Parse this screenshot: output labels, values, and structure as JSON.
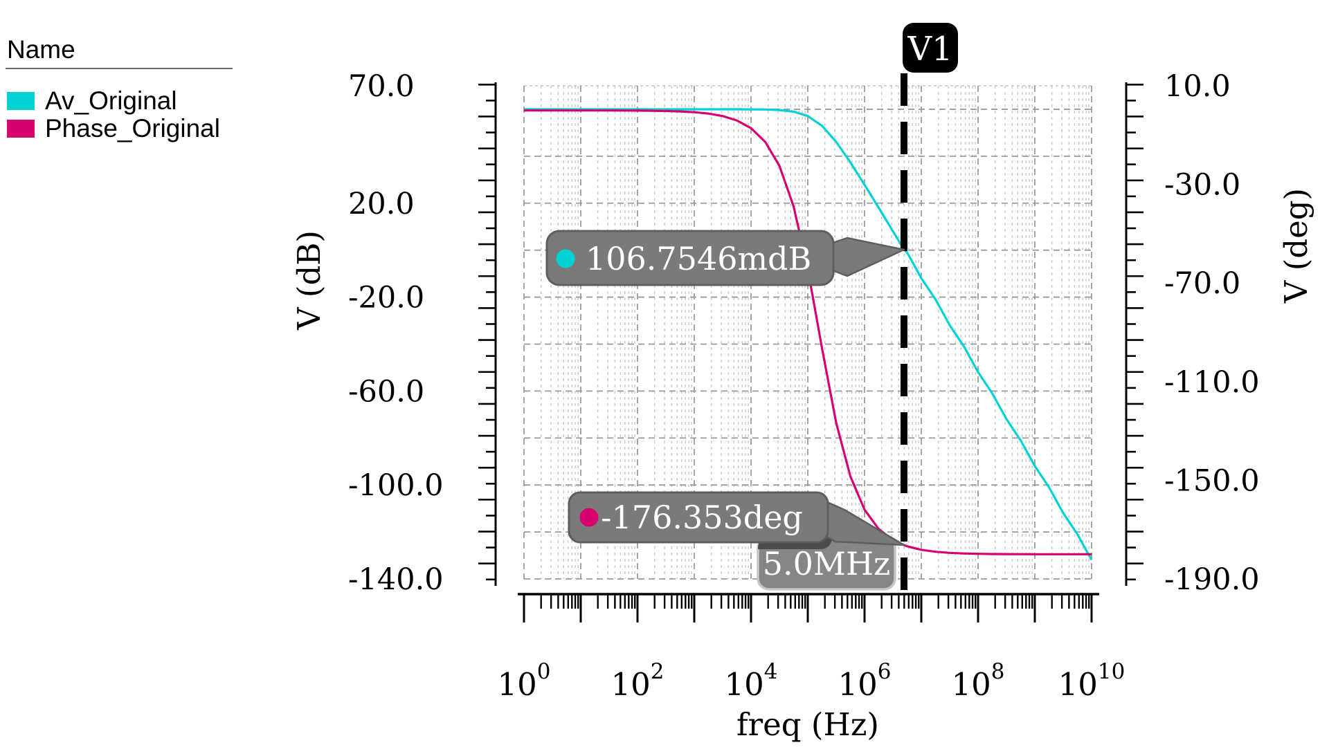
{
  "legend": {
    "title": "Name",
    "items": [
      {
        "label": "Av_Original",
        "color": "#00d2d4"
      },
      {
        "label": "Phase_Original",
        "color": "#d6006e"
      }
    ]
  },
  "axes": {
    "x": {
      "title": "freq (Hz)",
      "scale": "log",
      "min_exp": 0,
      "max_exp": 10,
      "ticks": [
        {
          "label": "10^0",
          "exp": 0
        },
        {
          "label": "10^2",
          "exp": 2
        },
        {
          "label": "10^4",
          "exp": 4
        },
        {
          "label": "10^6",
          "exp": 6
        },
        {
          "label": "10^8",
          "exp": 8
        },
        {
          "label": "10^10",
          "exp": 10
        }
      ]
    },
    "y_left": {
      "title": "V (dB)",
      "max": 70,
      "min": -140,
      "tick_labels": [
        "70.0",
        "20.0",
        "-20.0",
        "-60.0",
        "-100.0",
        "-140.0"
      ],
      "tick_values": [
        70,
        20,
        -20,
        -60,
        -100,
        -140
      ],
      "grid_step": 20
    },
    "y_right": {
      "title": "V (deg)",
      "max": 10,
      "min": -190,
      "tick_labels": [
        "10.0",
        "-30.0",
        "-70.0",
        "-110.0",
        "-150.0",
        "-190.0"
      ],
      "tick_values": [
        10,
        -30,
        -70,
        -110,
        -150,
        -190
      ]
    }
  },
  "markers": {
    "vline": {
      "label": "V1",
      "freq_label": "5.0MHz",
      "log10_freq": 6.69897
    },
    "gain": {
      "label": "106.7546mdB",
      "value_db": 0.1067546,
      "color": "#00d2d4"
    },
    "phase": {
      "label": "-176.353deg",
      "value_deg": -176.353,
      "color": "#d6006e"
    }
  },
  "chart_data": {
    "type": "line",
    "title": "",
    "xlabel": "freq (Hz)",
    "x_scale": "log",
    "grid": true,
    "legend_position": "top-left",
    "y_left_range": [
      -140,
      70
    ],
    "y_right_range": [
      -190,
      10
    ],
    "x_log10_freq": [
      0,
      0.25,
      0.5,
      0.75,
      1,
      1.25,
      1.5,
      1.75,
      2,
      2.25,
      2.5,
      2.75,
      3,
      3.25,
      3.5,
      3.75,
      4,
      4.25,
      4.5,
      4.75,
      5,
      5.25,
      5.5,
      5.75,
      6,
      6.25,
      6.5,
      6.7,
      6.75,
      7,
      7.25,
      7.5,
      7.75,
      8,
      8.25,
      8.5,
      8.75,
      9,
      9.25,
      9.5,
      9.75,
      10
    ],
    "series": [
      {
        "name": "Av_Original",
        "unit": "dB",
        "axis": "left",
        "color": "#00d2d4",
        "values": [
          60,
          60,
          60,
          60,
          60,
          60,
          60,
          60,
          60,
          60,
          60,
          60,
          60,
          59.999,
          59.997,
          59.989,
          59.966,
          59.892,
          59.664,
          58.979,
          57.111,
          52.964,
          46.108,
          37.402,
          27.857,
          18.002,
          8.051,
          0.107,
          -0.966,
          -11.928,
          -20.963,
          -31.928,
          -40.963,
          -51.928,
          -60.963,
          -71.928,
          -80.963,
          -91.928,
          -100.963,
          -111.928,
          -120.963,
          -131.928
        ]
      },
      {
        "name": "Phase_Original",
        "unit": "deg",
        "axis": "right",
        "color": "#d6006e",
        "values": [
          0,
          -0.001,
          -0.002,
          -0.004,
          -0.007,
          -0.013,
          -0.023,
          -0.04,
          -0.072,
          -0.128,
          -0.228,
          -0.405,
          -0.72,
          -1.28,
          -2.277,
          -4.046,
          -7.19,
          -12.746,
          -22.465,
          -38.934,
          -64.287,
          -96.335,
          -126.673,
          -148.377,
          -161.914,
          -169.771,
          -174.235,
          -176.353,
          -176.758,
          -178.177,
          -178.974,
          -179.423,
          -179.675,
          -179.817,
          -179.897,
          -179.942,
          -179.967,
          -179.982,
          -179.99,
          -179.994,
          -179.997,
          -179.998
        ]
      }
    ]
  },
  "style_colors": {
    "callout_fill": "#7a7a7a",
    "callout_stroke": "#5e5e5e",
    "callout_shadow": "#4b4b4b",
    "freqbox_fill": "#868686",
    "freqbox_stroke": "#c6c6c6",
    "marker_line": "#000000",
    "grid_major": "#9a9a9a",
    "grid_minor": "#cbcbcb"
  }
}
